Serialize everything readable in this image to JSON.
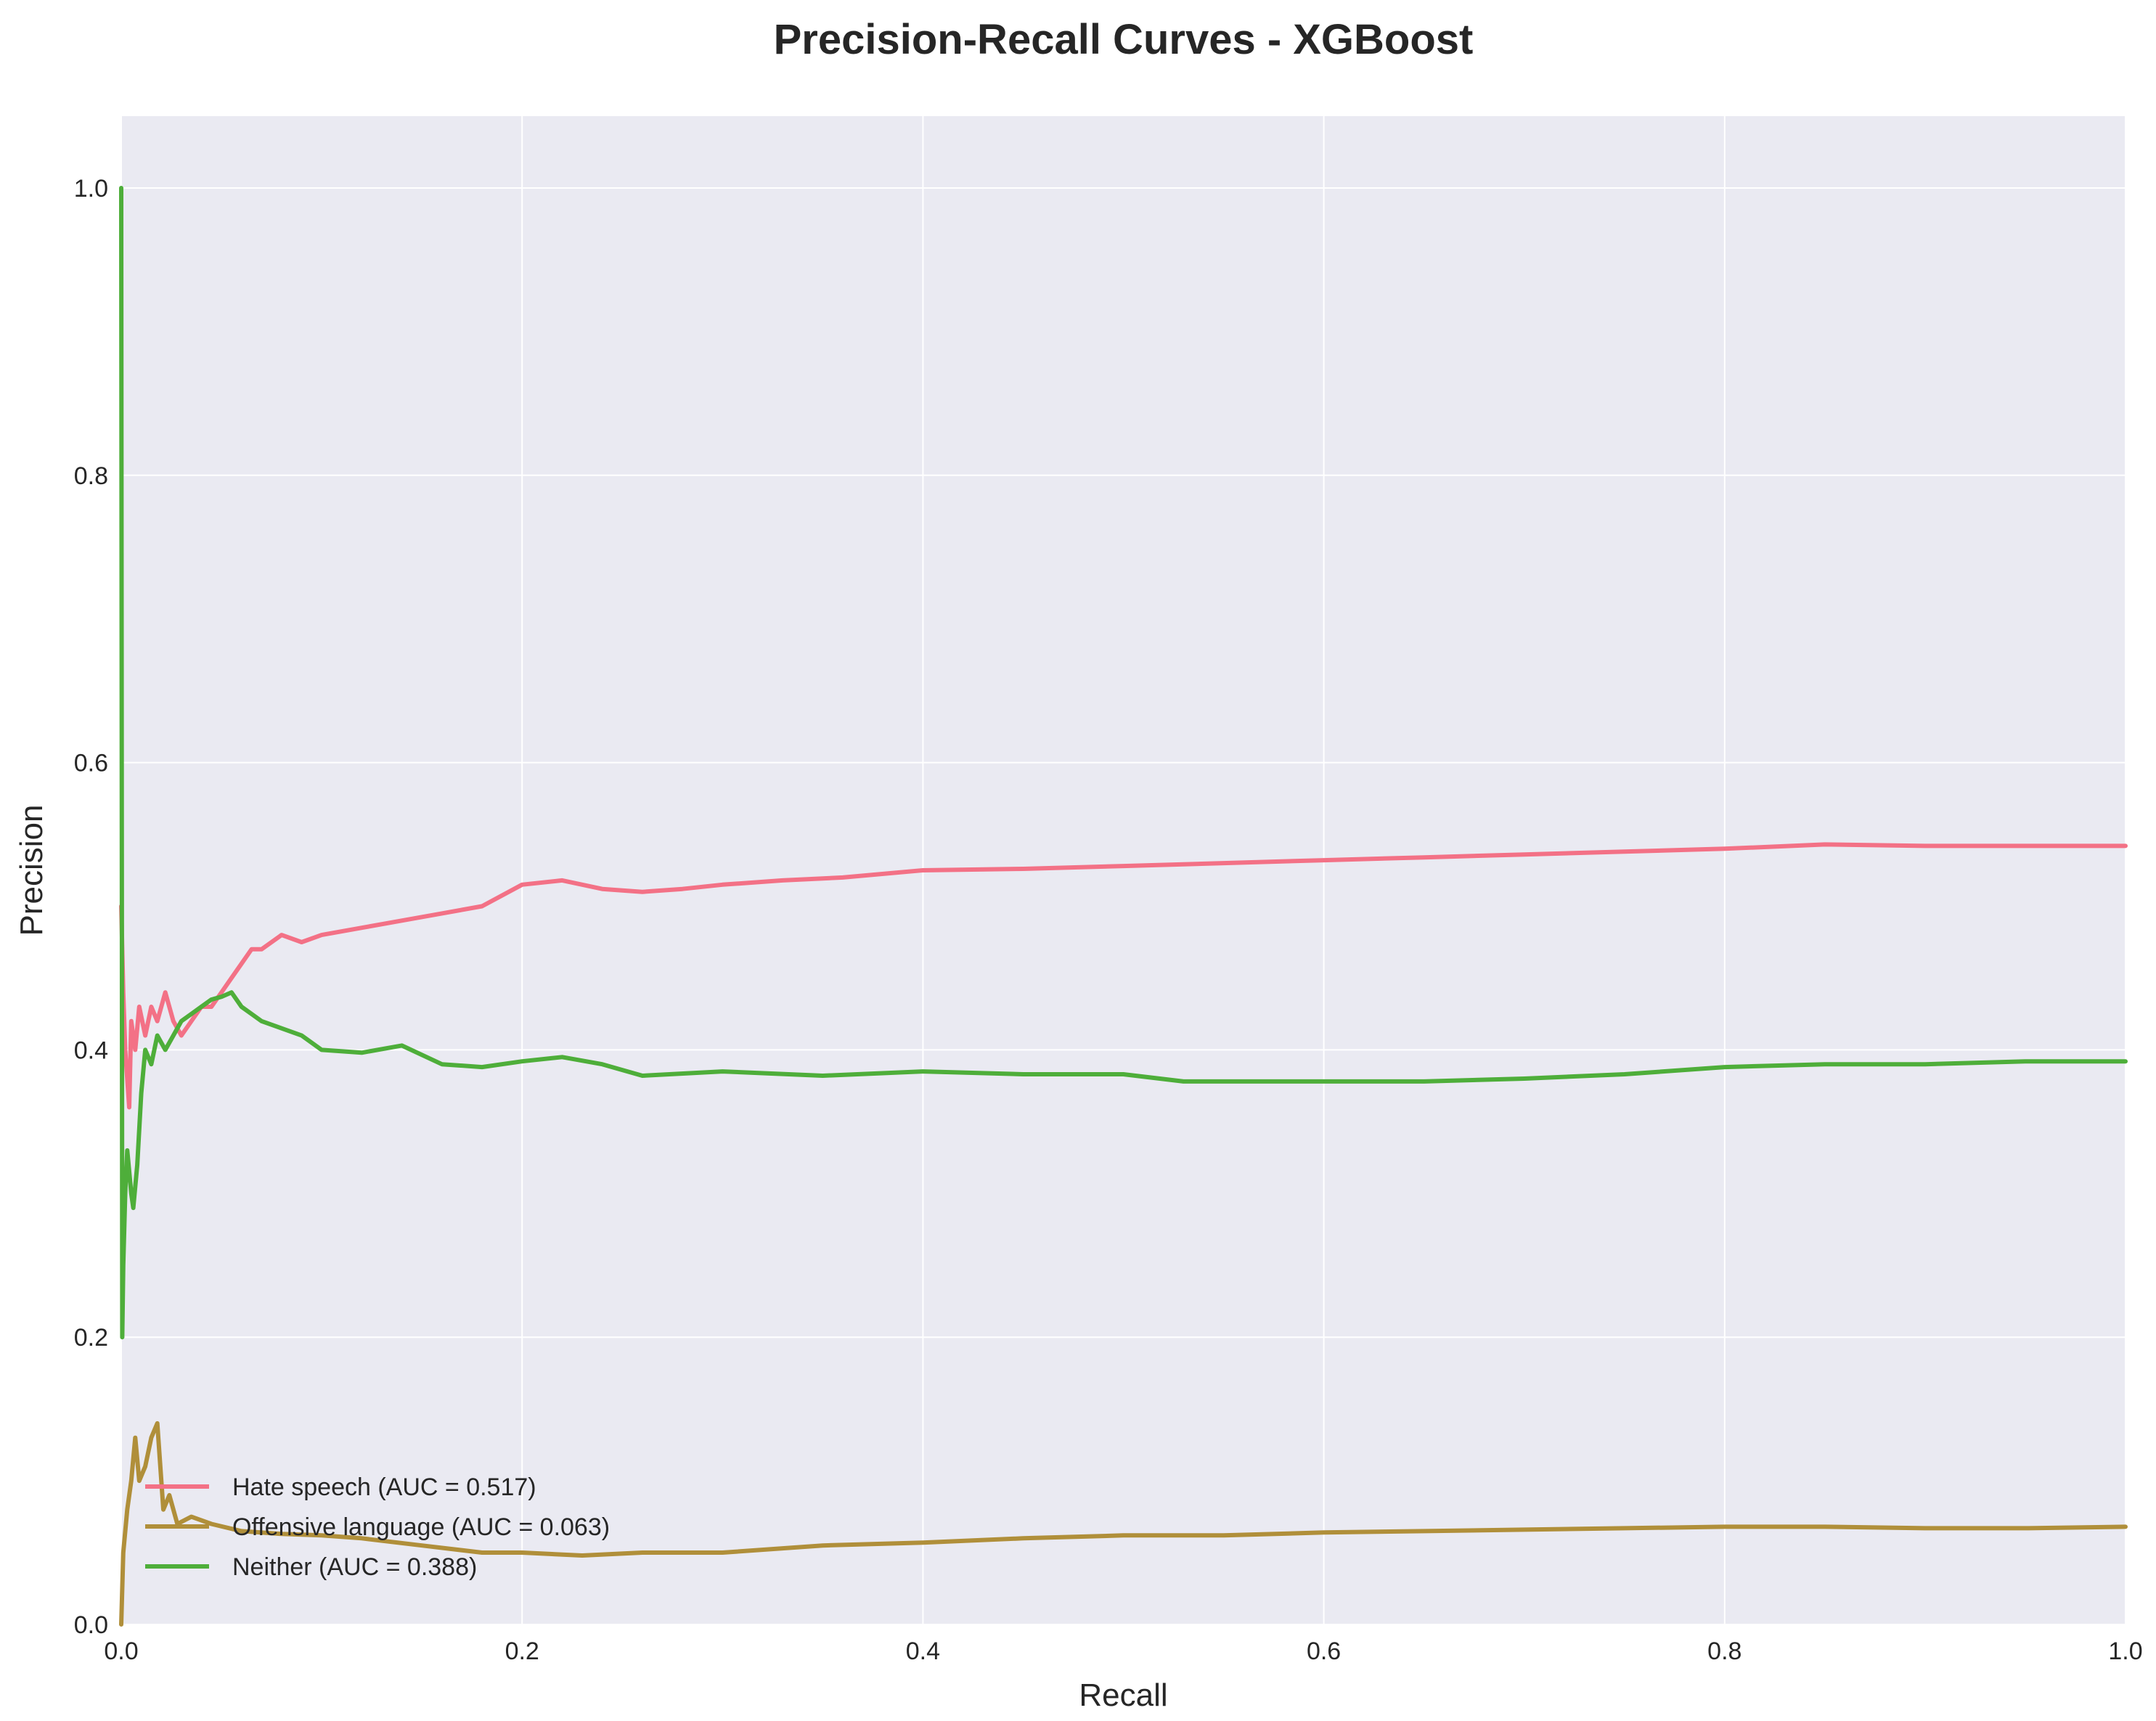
{
  "chart_data": {
    "type": "line",
    "title": "Precision-Recall Curves - XGBoost",
    "xlabel": "Recall",
    "ylabel": "Precision",
    "xlim": [
      0.0,
      1.0
    ],
    "ylim": [
      0.0,
      1.05
    ],
    "xticks": [
      "0.0",
      "0.2",
      "0.4",
      "0.6",
      "0.8",
      "1.0"
    ],
    "yticks": [
      "0.0",
      "0.2",
      "0.4",
      "0.6",
      "0.8",
      "1.0"
    ],
    "grid": true,
    "legend_position": "lower-left",
    "series": [
      {
        "name": "Hate speech (AUC = 0.517)",
        "color": "#f37186",
        "points": [
          [
            0.0,
            0.5
          ],
          [
            0.001,
            0.44
          ],
          [
            0.002,
            0.4
          ],
          [
            0.004,
            0.36
          ],
          [
            0.005,
            0.42
          ],
          [
            0.007,
            0.4
          ],
          [
            0.009,
            0.43
          ],
          [
            0.012,
            0.41
          ],
          [
            0.015,
            0.43
          ],
          [
            0.018,
            0.42
          ],
          [
            0.022,
            0.44
          ],
          [
            0.026,
            0.42
          ],
          [
            0.03,
            0.41
          ],
          [
            0.035,
            0.42
          ],
          [
            0.04,
            0.43
          ],
          [
            0.045,
            0.43
          ],
          [
            0.05,
            0.44
          ],
          [
            0.055,
            0.45
          ],
          [
            0.06,
            0.46
          ],
          [
            0.065,
            0.47
          ],
          [
            0.07,
            0.47
          ],
          [
            0.08,
            0.48
          ],
          [
            0.09,
            0.475
          ],
          [
            0.1,
            0.48
          ],
          [
            0.12,
            0.485
          ],
          [
            0.14,
            0.49
          ],
          [
            0.16,
            0.495
          ],
          [
            0.18,
            0.5
          ],
          [
            0.2,
            0.515
          ],
          [
            0.22,
            0.518
          ],
          [
            0.24,
            0.512
          ],
          [
            0.26,
            0.51
          ],
          [
            0.28,
            0.512
          ],
          [
            0.3,
            0.515
          ],
          [
            0.33,
            0.518
          ],
          [
            0.36,
            0.52
          ],
          [
            0.4,
            0.525
          ],
          [
            0.45,
            0.526
          ],
          [
            0.5,
            0.528
          ],
          [
            0.55,
            0.53
          ],
          [
            0.6,
            0.532
          ],
          [
            0.65,
            0.534
          ],
          [
            0.7,
            0.536
          ],
          [
            0.75,
            0.538
          ],
          [
            0.8,
            0.54
          ],
          [
            0.85,
            0.543
          ],
          [
            0.9,
            0.542
          ],
          [
            0.95,
            0.542
          ],
          [
            1.0,
            0.542
          ]
        ]
      },
      {
        "name": "Offensive language (AUC = 0.063)",
        "color": "#b08f3a",
        "points": [
          [
            0.0,
            0.0
          ],
          [
            0.001,
            0.05
          ],
          [
            0.003,
            0.08
          ],
          [
            0.005,
            0.1
          ],
          [
            0.007,
            0.13
          ],
          [
            0.009,
            0.1
          ],
          [
            0.012,
            0.11
          ],
          [
            0.015,
            0.13
          ],
          [
            0.018,
            0.14
          ],
          [
            0.021,
            0.08
          ],
          [
            0.024,
            0.09
          ],
          [
            0.028,
            0.07
          ],
          [
            0.035,
            0.075
          ],
          [
            0.045,
            0.07
          ],
          [
            0.06,
            0.065
          ],
          [
            0.08,
            0.063
          ],
          [
            0.1,
            0.062
          ],
          [
            0.12,
            0.06
          ],
          [
            0.15,
            0.055
          ],
          [
            0.18,
            0.05
          ],
          [
            0.2,
            0.05
          ],
          [
            0.23,
            0.048
          ],
          [
            0.26,
            0.05
          ],
          [
            0.3,
            0.05
          ],
          [
            0.35,
            0.055
          ],
          [
            0.4,
            0.057
          ],
          [
            0.45,
            0.06
          ],
          [
            0.5,
            0.062
          ],
          [
            0.55,
            0.062
          ],
          [
            0.6,
            0.064
          ],
          [
            0.65,
            0.065
          ],
          [
            0.7,
            0.066
          ],
          [
            0.75,
            0.067
          ],
          [
            0.8,
            0.068
          ],
          [
            0.85,
            0.068
          ],
          [
            0.9,
            0.067
          ],
          [
            0.95,
            0.067
          ],
          [
            1.0,
            0.068
          ]
        ]
      },
      {
        "name": "Neither (AUC = 0.388)",
        "color": "#4eae3a",
        "points": [
          [
            0.0,
            1.0
          ],
          [
            0.0005,
            0.2
          ],
          [
            0.001,
            0.25
          ],
          [
            0.002,
            0.3
          ],
          [
            0.003,
            0.33
          ],
          [
            0.005,
            0.3
          ],
          [
            0.006,
            0.29
          ],
          [
            0.008,
            0.32
          ],
          [
            0.01,
            0.37
          ],
          [
            0.012,
            0.4
          ],
          [
            0.015,
            0.39
          ],
          [
            0.018,
            0.41
          ],
          [
            0.022,
            0.4
          ],
          [
            0.026,
            0.41
          ],
          [
            0.03,
            0.42
          ],
          [
            0.035,
            0.425
          ],
          [
            0.04,
            0.43
          ],
          [
            0.045,
            0.435
          ],
          [
            0.05,
            0.437
          ],
          [
            0.055,
            0.44
          ],
          [
            0.06,
            0.43
          ],
          [
            0.07,
            0.42
          ],
          [
            0.08,
            0.415
          ],
          [
            0.09,
            0.41
          ],
          [
            0.1,
            0.4
          ],
          [
            0.12,
            0.398
          ],
          [
            0.14,
            0.403
          ],
          [
            0.16,
            0.39
          ],
          [
            0.18,
            0.388
          ],
          [
            0.2,
            0.392
          ],
          [
            0.22,
            0.395
          ],
          [
            0.24,
            0.39
          ],
          [
            0.26,
            0.382
          ],
          [
            0.3,
            0.385
          ],
          [
            0.35,
            0.382
          ],
          [
            0.4,
            0.385
          ],
          [
            0.45,
            0.383
          ],
          [
            0.5,
            0.383
          ],
          [
            0.53,
            0.378
          ],
          [
            0.56,
            0.378
          ],
          [
            0.6,
            0.378
          ],
          [
            0.65,
            0.378
          ],
          [
            0.7,
            0.38
          ],
          [
            0.75,
            0.383
          ],
          [
            0.8,
            0.388
          ],
          [
            0.85,
            0.39
          ],
          [
            0.9,
            0.39
          ],
          [
            0.95,
            0.392
          ],
          [
            1.0,
            0.392
          ]
        ]
      }
    ]
  }
}
